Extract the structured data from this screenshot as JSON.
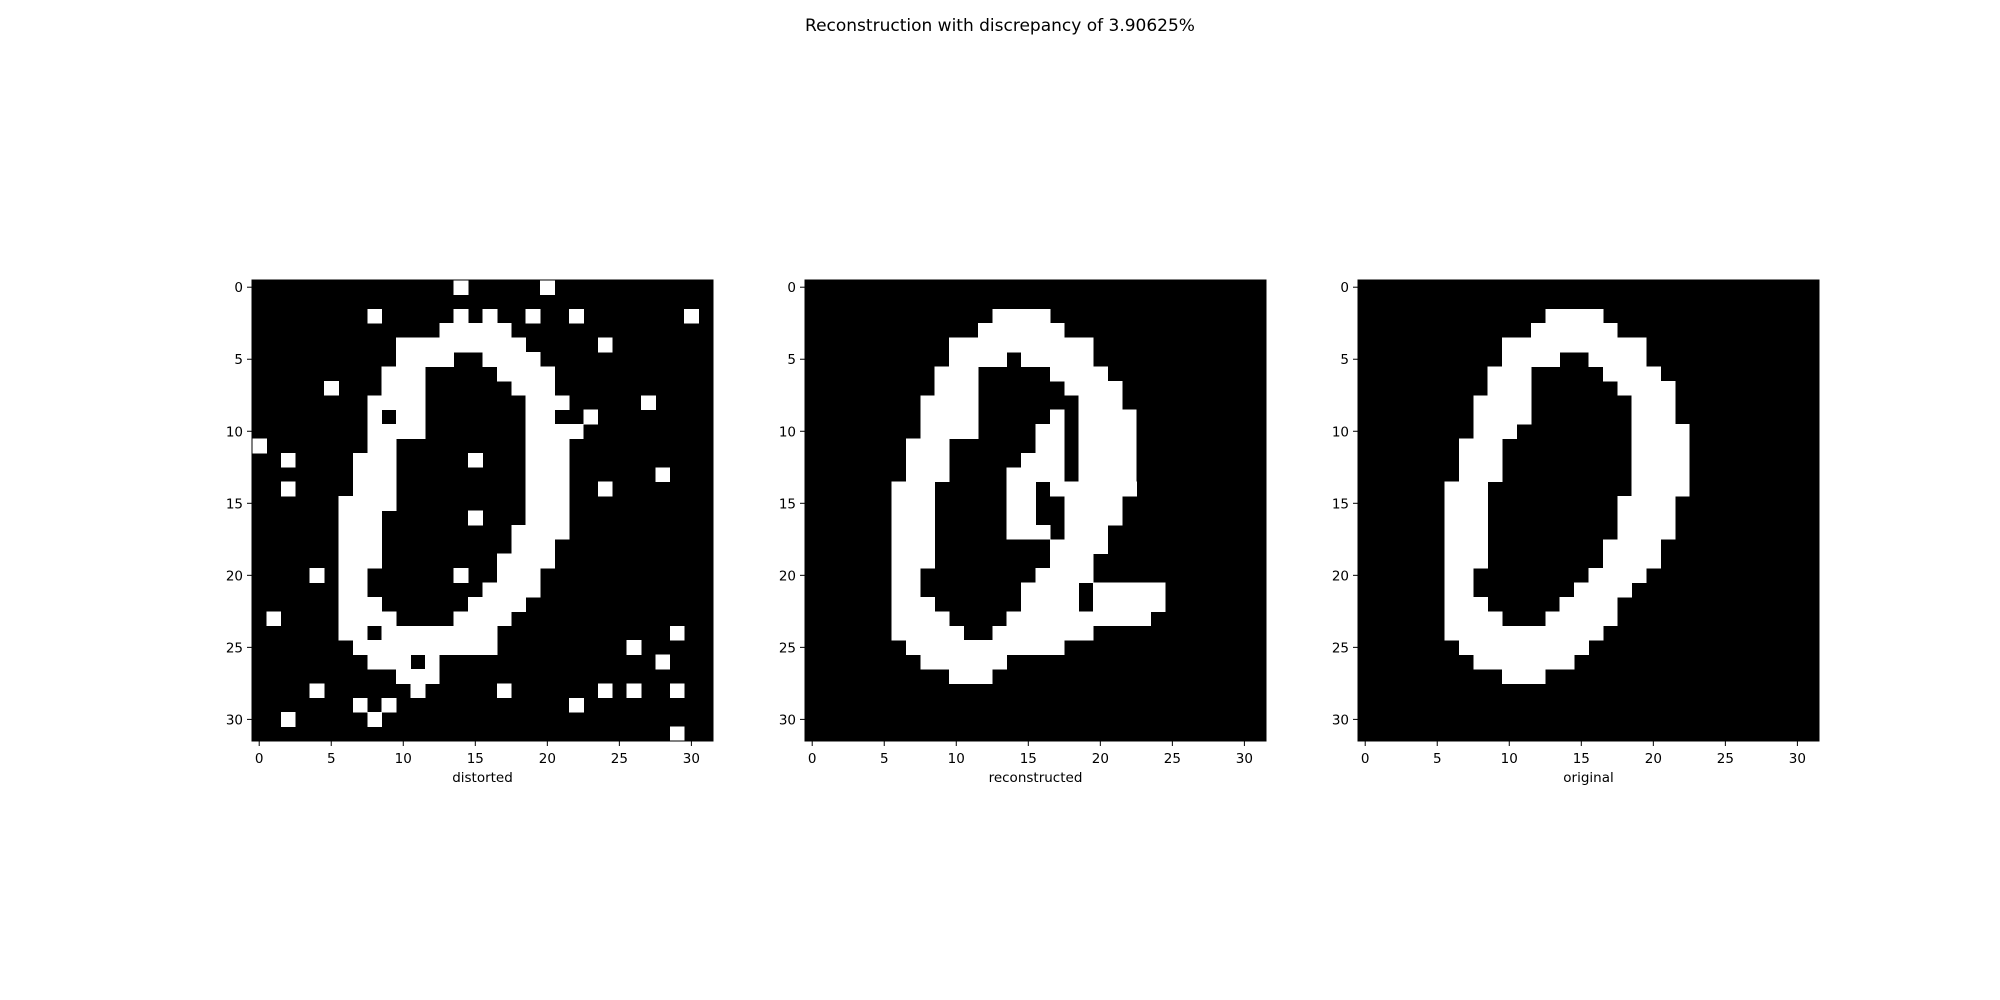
{
  "figure": {
    "title": "Reconstruction with discrepancy of 3.90625%"
  },
  "colors": {
    "on": "#ffffff",
    "off": "#000000",
    "frame": "#000000"
  },
  "chart_data": [
    {
      "type": "heatmap",
      "xlabel": "distorted",
      "rows": 32,
      "cols": 32,
      "xlim": [
        -0.5,
        31.5
      ],
      "ylim": [
        31.5,
        -0.5
      ],
      "x_ticks": [
        0,
        5,
        10,
        15,
        20,
        25,
        30
      ],
      "y_ticks": [
        0,
        5,
        10,
        15,
        20,
        25,
        30
      ],
      "runs": [
        [
          0,
          14,
          14
        ],
        [
          0,
          20,
          20
        ],
        [
          2,
          8,
          8
        ],
        [
          2,
          14,
          14
        ],
        [
          2,
          16,
          16
        ],
        [
          2,
          19,
          19
        ],
        [
          2,
          22,
          22
        ],
        [
          2,
          30,
          30
        ],
        [
          3,
          13,
          17
        ],
        [
          4,
          10,
          18
        ],
        [
          4,
          24,
          24
        ],
        [
          5,
          10,
          13
        ],
        [
          5,
          16,
          19
        ],
        [
          6,
          9,
          11
        ],
        [
          6,
          17,
          20
        ],
        [
          7,
          5,
          5
        ],
        [
          7,
          9,
          11
        ],
        [
          7,
          18,
          20
        ],
        [
          8,
          8,
          11
        ],
        [
          8,
          19,
          21
        ],
        [
          8,
          27,
          27
        ],
        [
          9,
          8,
          8
        ],
        [
          9,
          10,
          11
        ],
        [
          9,
          19,
          20
        ],
        [
          9,
          23,
          23
        ],
        [
          10,
          8,
          11
        ],
        [
          10,
          19,
          22
        ],
        [
          11,
          0,
          0
        ],
        [
          11,
          8,
          9
        ],
        [
          11,
          19,
          21
        ],
        [
          12,
          2,
          2
        ],
        [
          12,
          7,
          9
        ],
        [
          12,
          15,
          15
        ],
        [
          12,
          19,
          21
        ],
        [
          13,
          7,
          9
        ],
        [
          13,
          19,
          21
        ],
        [
          13,
          28,
          28
        ],
        [
          14,
          2,
          2
        ],
        [
          14,
          7,
          9
        ],
        [
          14,
          19,
          21
        ],
        [
          14,
          24,
          24
        ],
        [
          15,
          6,
          9
        ],
        [
          15,
          19,
          21
        ],
        [
          16,
          6,
          8
        ],
        [
          16,
          15,
          15
        ],
        [
          16,
          19,
          21
        ],
        [
          17,
          6,
          8
        ],
        [
          17,
          18,
          21
        ],
        [
          18,
          6,
          8
        ],
        [
          18,
          18,
          20
        ],
        [
          19,
          6,
          8
        ],
        [
          19,
          17,
          20
        ],
        [
          20,
          4,
          4
        ],
        [
          20,
          6,
          7
        ],
        [
          20,
          14,
          14
        ],
        [
          20,
          17,
          19
        ],
        [
          21,
          6,
          7
        ],
        [
          21,
          16,
          19
        ],
        [
          22,
          6,
          8
        ],
        [
          22,
          15,
          18
        ],
        [
          23,
          1,
          1
        ],
        [
          23,
          6,
          9
        ],
        [
          23,
          14,
          17
        ],
        [
          24,
          6,
          7
        ],
        [
          24,
          9,
          16
        ],
        [
          24,
          29,
          29
        ],
        [
          25,
          7,
          16
        ],
        [
          25,
          26,
          26
        ],
        [
          26,
          8,
          10
        ],
        [
          26,
          12,
          12
        ],
        [
          26,
          28,
          28
        ],
        [
          27,
          10,
          12
        ],
        [
          28,
          4,
          4
        ],
        [
          28,
          11,
          11
        ],
        [
          28,
          17,
          17
        ],
        [
          28,
          24,
          24
        ],
        [
          28,
          26,
          26
        ],
        [
          28,
          29,
          29
        ],
        [
          29,
          7,
          7
        ],
        [
          29,
          9,
          9
        ],
        [
          29,
          22,
          22
        ],
        [
          30,
          2,
          2
        ],
        [
          30,
          8,
          8
        ],
        [
          31,
          29,
          29
        ]
      ]
    },
    {
      "type": "heatmap",
      "xlabel": "reconstructed",
      "rows": 32,
      "cols": 32,
      "xlim": [
        -0.5,
        31.5
      ],
      "ylim": [
        31.5,
        -0.5
      ],
      "x_ticks": [
        0,
        5,
        10,
        15,
        20,
        25,
        30
      ],
      "y_ticks": [
        0,
        5,
        10,
        15,
        20,
        25,
        30
      ],
      "runs": [
        [
          2,
          13,
          16
        ],
        [
          3,
          12,
          17
        ],
        [
          4,
          10,
          19
        ],
        [
          5,
          10,
          13
        ],
        [
          5,
          15,
          19
        ],
        [
          6,
          9,
          11
        ],
        [
          6,
          17,
          20
        ],
        [
          7,
          9,
          11
        ],
        [
          7,
          18,
          21
        ],
        [
          8,
          8,
          11
        ],
        [
          8,
          19,
          21
        ],
        [
          9,
          8,
          11
        ],
        [
          9,
          17,
          17
        ],
        [
          9,
          19,
          22
        ],
        [
          10,
          8,
          11
        ],
        [
          10,
          16,
          17
        ],
        [
          10,
          19,
          22
        ],
        [
          11,
          7,
          9
        ],
        [
          11,
          16,
          17
        ],
        [
          11,
          19,
          22
        ],
        [
          12,
          7,
          9
        ],
        [
          12,
          15,
          17
        ],
        [
          12,
          19,
          22
        ],
        [
          13,
          7,
          9
        ],
        [
          13,
          14,
          17
        ],
        [
          13,
          19,
          22
        ],
        [
          14,
          6,
          8
        ],
        [
          14,
          14,
          15
        ],
        [
          14,
          17,
          22
        ],
        [
          15,
          6,
          8
        ],
        [
          15,
          14,
          15
        ],
        [
          15,
          18,
          21
        ],
        [
          16,
          6,
          8
        ],
        [
          16,
          14,
          15
        ],
        [
          16,
          18,
          21
        ],
        [
          17,
          6,
          8
        ],
        [
          17,
          14,
          16
        ],
        [
          17,
          18,
          20
        ],
        [
          18,
          6,
          8
        ],
        [
          18,
          17,
          20
        ],
        [
          19,
          6,
          8
        ],
        [
          19,
          17,
          19
        ],
        [
          20,
          6,
          7
        ],
        [
          20,
          16,
          19
        ],
        [
          21,
          6,
          7
        ],
        [
          21,
          15,
          18
        ],
        [
          21,
          20,
          24
        ],
        [
          22,
          6,
          8
        ],
        [
          22,
          15,
          18
        ],
        [
          22,
          20,
          24
        ],
        [
          23,
          6,
          9
        ],
        [
          23,
          14,
          23
        ],
        [
          24,
          6,
          10
        ],
        [
          24,
          13,
          19
        ],
        [
          25,
          7,
          17
        ],
        [
          26,
          8,
          13
        ],
        [
          27,
          10,
          12
        ]
      ]
    },
    {
      "type": "heatmap",
      "xlabel": "original",
      "rows": 32,
      "cols": 32,
      "xlim": [
        -0.5,
        31.5
      ],
      "ylim": [
        31.5,
        -0.5
      ],
      "x_ticks": [
        0,
        5,
        10,
        15,
        20,
        25,
        30
      ],
      "y_ticks": [
        0,
        5,
        10,
        15,
        20,
        25,
        30
      ],
      "runs": [
        [
          2,
          13,
          16
        ],
        [
          3,
          12,
          17
        ],
        [
          4,
          10,
          19
        ],
        [
          5,
          10,
          13
        ],
        [
          5,
          16,
          19
        ],
        [
          6,
          9,
          11
        ],
        [
          6,
          17,
          20
        ],
        [
          7,
          9,
          11
        ],
        [
          7,
          18,
          21
        ],
        [
          8,
          8,
          11
        ],
        [
          8,
          19,
          21
        ],
        [
          9,
          8,
          11
        ],
        [
          9,
          19,
          21
        ],
        [
          10,
          8,
          10
        ],
        [
          10,
          19,
          22
        ],
        [
          11,
          7,
          9
        ],
        [
          11,
          19,
          22
        ],
        [
          12,
          7,
          9
        ],
        [
          12,
          19,
          22
        ],
        [
          13,
          7,
          9
        ],
        [
          13,
          19,
          22
        ],
        [
          14,
          6,
          8
        ],
        [
          14,
          19,
          22
        ],
        [
          15,
          6,
          8
        ],
        [
          15,
          18,
          21
        ],
        [
          16,
          6,
          8
        ],
        [
          16,
          18,
          21
        ],
        [
          17,
          6,
          8
        ],
        [
          17,
          18,
          21
        ],
        [
          18,
          6,
          8
        ],
        [
          18,
          17,
          20
        ],
        [
          19,
          6,
          8
        ],
        [
          19,
          17,
          20
        ],
        [
          20,
          6,
          7
        ],
        [
          20,
          16,
          19
        ],
        [
          21,
          6,
          7
        ],
        [
          21,
          15,
          18
        ],
        [
          22,
          6,
          8
        ],
        [
          22,
          14,
          17
        ],
        [
          23,
          6,
          9
        ],
        [
          23,
          13,
          17
        ],
        [
          24,
          6,
          16
        ],
        [
          25,
          7,
          15
        ],
        [
          26,
          8,
          14
        ],
        [
          27,
          10,
          12
        ]
      ]
    }
  ]
}
